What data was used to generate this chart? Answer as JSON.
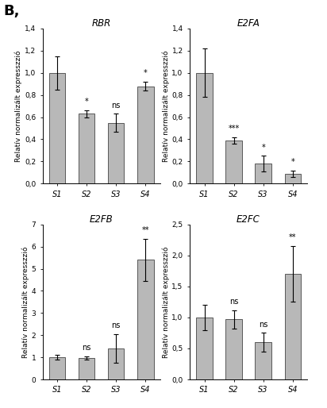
{
  "subplots": [
    {
      "title": "RBR",
      "values": [
        1.0,
        0.63,
        0.55,
        0.88
      ],
      "errors": [
        0.15,
        0.03,
        0.08,
        0.04
      ],
      "ylim": [
        0,
        1.4
      ],
      "yticks": [
        0.0,
        0.2,
        0.4,
        0.6,
        0.8,
        1.0,
        1.2,
        1.4
      ],
      "ytick_labels": [
        "0,0",
        "0,2",
        "0,4",
        "0,6",
        "0,8",
        "1,0",
        "1,2",
        "1,4"
      ],
      "significance": [
        "",
        "*",
        "ns",
        "*"
      ],
      "categories": [
        "S1",
        "S2",
        "S3",
        "S4"
      ]
    },
    {
      "title": "E2FA",
      "values": [
        1.0,
        0.39,
        0.18,
        0.09
      ],
      "errors": [
        0.22,
        0.03,
        0.07,
        0.03
      ],
      "ylim": [
        0,
        1.4
      ],
      "yticks": [
        0.0,
        0.2,
        0.4,
        0.6,
        0.8,
        1.0,
        1.2,
        1.4
      ],
      "ytick_labels": [
        "0,0",
        "0,2",
        "0,4",
        "0,6",
        "0,8",
        "1,0",
        "1,2",
        "1,4"
      ],
      "significance": [
        "",
        "***",
        "*",
        "*"
      ],
      "categories": [
        "S1",
        "S2",
        "S3",
        "S4"
      ]
    },
    {
      "title": "E2FB",
      "values": [
        1.0,
        0.97,
        1.4,
        5.4
      ],
      "errors": [
        0.12,
        0.06,
        0.65,
        0.95
      ],
      "ylim": [
        0,
        7
      ],
      "yticks": [
        0,
        1,
        2,
        3,
        4,
        5,
        6,
        7
      ],
      "ytick_labels": [
        "0",
        "1",
        "2",
        "3",
        "4",
        "5",
        "6",
        "7"
      ],
      "significance": [
        "",
        "ns",
        "ns",
        "**"
      ],
      "categories": [
        "S1",
        "S2",
        "S3",
        "S4"
      ]
    },
    {
      "title": "E2FC",
      "values": [
        1.0,
        0.97,
        0.6,
        1.7
      ],
      "errors": [
        0.2,
        0.15,
        0.15,
        0.45
      ],
      "ylim": [
        0,
        2.5
      ],
      "yticks": [
        0.0,
        0.5,
        1.0,
        1.5,
        2.0,
        2.5
      ],
      "ytick_labels": [
        "0,0",
        "0,5",
        "1,0",
        "1,5",
        "2,0",
        "2,5"
      ],
      "significance": [
        "",
        "ns",
        "ns",
        "**"
      ],
      "categories": [
        "S1",
        "S2",
        "S3",
        "S4"
      ]
    }
  ],
  "bar_color": "#b8b8b8",
  "bar_edge_color": "#444444",
  "ylabel": "Relatív normalizált expresszzió",
  "xlabel_fontsize": 7,
  "ylabel_fontsize": 6.5,
  "title_fontsize": 8.5,
  "tick_fontsize": 6.5,
  "sig_fontsize": 7,
  "B_label": "B,"
}
